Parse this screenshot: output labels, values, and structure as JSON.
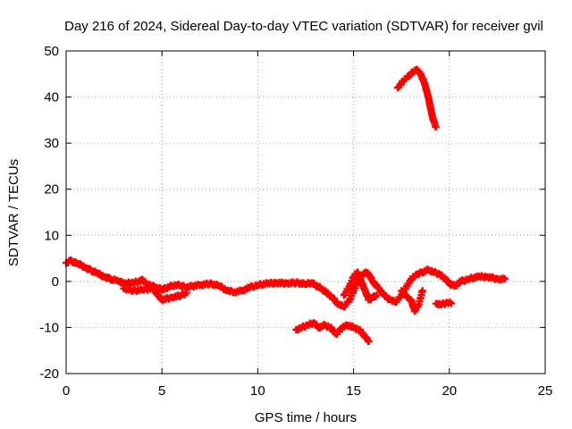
{
  "chart_data": {
    "type": "scatter",
    "title": "Day 216 of 2024, Sidereal Day-to-day VTEC variation (SDTVAR) for receiver gvil",
    "xlabel": "GPS time / hours",
    "ylabel": "SDTVAR / TECUs",
    "xlim": [
      0,
      25
    ],
    "ylim": [
      -20,
      50
    ],
    "xticks": [
      0,
      5,
      10,
      15,
      20,
      25
    ],
    "yticks": [
      -20,
      -10,
      0,
      10,
      20,
      30,
      40,
      50
    ],
    "grid": true,
    "legend": "none",
    "marker_color": "#ff0000",
    "series": [
      {
        "name": "segment-1",
        "points": [
          [
            0.0,
            4.0
          ],
          [
            0.2,
            4.5
          ],
          [
            0.4,
            4.2
          ],
          [
            0.6,
            3.8
          ],
          [
            0.8,
            3.5
          ],
          [
            1.0,
            3.0
          ],
          [
            1.2,
            2.6
          ],
          [
            1.4,
            2.2
          ],
          [
            1.6,
            1.8
          ],
          [
            1.8,
            1.4
          ],
          [
            2.0,
            1.0
          ],
          [
            2.2,
            0.7
          ],
          [
            2.4,
            0.4
          ],
          [
            2.6,
            0.2
          ],
          [
            2.8,
            0.0
          ],
          [
            3.0,
            -0.3
          ],
          [
            3.2,
            -0.4
          ],
          [
            3.5,
            -0.3
          ],
          [
            3.8,
            0.0
          ],
          [
            4.0,
            0.3
          ],
          [
            4.2,
            -0.5
          ],
          [
            4.5,
            -1.0
          ],
          [
            4.8,
            -1.5
          ],
          [
            5.0,
            -1.8
          ],
          [
            5.2,
            -1.5
          ],
          [
            5.5,
            -1.0
          ],
          [
            5.8,
            -0.8
          ],
          [
            6.0,
            -1.0
          ],
          [
            6.3,
            -1.3
          ],
          [
            6.6,
            -1.0
          ],
          [
            7.0,
            -0.8
          ],
          [
            7.5,
            -0.5
          ],
          [
            8.0,
            -1.0
          ],
          [
            8.4,
            -2.0
          ],
          [
            8.8,
            -2.3
          ],
          [
            9.2,
            -2.0
          ],
          [
            9.6,
            -1.3
          ],
          [
            10.0,
            -0.8
          ],
          [
            10.5,
            -0.5
          ],
          [
            11.0,
            -0.3
          ],
          [
            11.5,
            -0.4
          ],
          [
            12.0,
            -0.3
          ],
          [
            12.5,
            -0.6
          ],
          [
            12.8,
            -0.3
          ],
          [
            13.0,
            -0.8
          ],
          [
            13.3,
            -1.5
          ],
          [
            13.6,
            -2.5
          ],
          [
            13.9,
            -3.5
          ],
          [
            14.2,
            -5.0
          ],
          [
            14.5,
            -5.5
          ],
          [
            14.8,
            -4.0
          ],
          [
            15.0,
            -2.0
          ],
          [
            15.3,
            0.5
          ],
          [
            15.6,
            2.0
          ],
          [
            15.8,
            1.5
          ],
          [
            16.0,
            0.0
          ],
          [
            16.3,
            -1.5
          ],
          [
            16.6,
            -3.0
          ],
          [
            16.9,
            -4.0
          ],
          [
            17.2,
            -4.5
          ],
          [
            17.5,
            -3.0
          ],
          [
            17.8,
            -1.0
          ],
          [
            18.0,
            0.5
          ],
          [
            18.3,
            1.5
          ],
          [
            18.6,
            2.0
          ],
          [
            18.9,
            2.5
          ],
          [
            19.2,
            2.0
          ],
          [
            19.5,
            1.5
          ],
          [
            19.8,
            0.5
          ],
          [
            20.0,
            -0.5
          ],
          [
            20.3,
            -1.0
          ],
          [
            20.6,
            0.0
          ],
          [
            21.0,
            0.5
          ],
          [
            21.5,
            1.0
          ],
          [
            22.0,
            1.0
          ],
          [
            22.5,
            0.5
          ],
          [
            22.9,
            0.5
          ]
        ]
      },
      {
        "name": "segment-2",
        "points": [
          [
            3.0,
            -1.5
          ],
          [
            3.5,
            -2.0
          ],
          [
            4.0,
            -1.8
          ],
          [
            4.5,
            -1.5
          ],
          [
            5.0,
            -4.0
          ],
          [
            5.5,
            -3.5
          ],
          [
            6.0,
            -3.0
          ],
          [
            6.3,
            -2.5
          ]
        ]
      },
      {
        "name": "segment-3",
        "points": [
          [
            14.5,
            -3.0
          ],
          [
            14.8,
            -1.0
          ],
          [
            15.0,
            1.0
          ],
          [
            15.2,
            2.0
          ],
          [
            15.5,
            -1.0
          ],
          [
            15.8,
            -4.0
          ],
          [
            16.0,
            -3.5
          ],
          [
            16.2,
            -3.0
          ]
        ]
      },
      {
        "name": "segment-4",
        "points": [
          [
            17.5,
            -2.0
          ],
          [
            17.8,
            -3.5
          ],
          [
            18.0,
            -4.0
          ],
          [
            18.2,
            -6.5
          ],
          [
            18.4,
            -5.0
          ],
          [
            18.6,
            -2.0
          ]
        ]
      },
      {
        "name": "segment-5",
        "points": [
          [
            12.0,
            -10.5
          ],
          [
            12.3,
            -10.0
          ],
          [
            12.6,
            -9.5
          ],
          [
            12.9,
            -9.0
          ],
          [
            13.2,
            -10.0
          ],
          [
            13.5,
            -9.5
          ],
          [
            13.8,
            -10.0
          ],
          [
            14.1,
            -11.5
          ],
          [
            14.4,
            -10.0
          ],
          [
            14.7,
            -9.5
          ],
          [
            15.0,
            -10.0
          ],
          [
            15.3,
            -10.5
          ],
          [
            15.6,
            -12.0
          ],
          [
            15.8,
            -13.0
          ]
        ]
      },
      {
        "name": "segment-6",
        "points": [
          [
            19.3,
            -4.8
          ],
          [
            19.6,
            -5.0
          ],
          [
            19.9,
            -4.6
          ],
          [
            20.1,
            -4.8
          ]
        ]
      },
      {
        "name": "segment-7",
        "points": [
          [
            17.3,
            42.0
          ],
          [
            17.5,
            43.0
          ],
          [
            17.7,
            44.0
          ],
          [
            17.9,
            44.5
          ],
          [
            18.1,
            45.5
          ],
          [
            18.3,
            46.0
          ],
          [
            18.5,
            45.0
          ],
          [
            18.7,
            43.0
          ],
          [
            18.9,
            40.0
          ],
          [
            19.0,
            38.0
          ],
          [
            19.1,
            36.0
          ],
          [
            19.2,
            34.5
          ],
          [
            19.3,
            33.5
          ]
        ]
      }
    ]
  }
}
